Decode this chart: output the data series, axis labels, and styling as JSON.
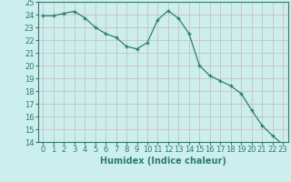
{
  "x": [
    0,
    1,
    2,
    3,
    4,
    5,
    6,
    7,
    8,
    9,
    10,
    11,
    12,
    13,
    14,
    15,
    16,
    17,
    18,
    19,
    20,
    21,
    22,
    23
  ],
  "y": [
    23.9,
    23.9,
    24.1,
    24.25,
    23.75,
    23.0,
    22.5,
    22.2,
    21.5,
    21.3,
    21.8,
    23.6,
    24.3,
    23.7,
    22.5,
    20.0,
    19.2,
    18.8,
    18.4,
    17.8,
    16.5,
    15.3,
    14.5,
    13.8
  ],
  "xlabel": "Humidex (Indice chaleur)",
  "line_color": "#2e7d6e",
  "marker": "+",
  "bg_color": "#cceeec",
  "grid_color": "#c8b8b8",
  "ymin": 14,
  "ymax": 25,
  "xmin": 0,
  "xmax": 23,
  "label_fontsize": 7,
  "tick_fontsize": 6
}
